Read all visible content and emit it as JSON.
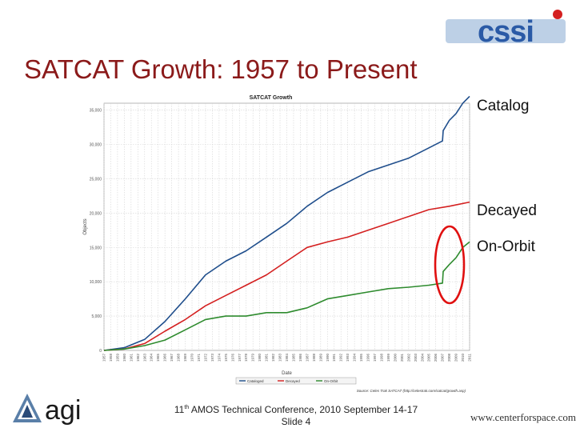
{
  "slide": {
    "title": "SATCAT Growth: 1957 to Present",
    "footer_line1_pre": "11",
    "footer_line1_sup": "th",
    "footer_line1_post": " AMOS Technical Conference, 2010 September 14-17",
    "footer_line2": "Slide 4",
    "website": "www.centerforspace.com",
    "logo_left": "agi",
    "logo_right": "cssi"
  },
  "callouts": {
    "catalog": "Catalog",
    "decayed": "Decayed",
    "on_orbit": "On-Orbit"
  },
  "colors": {
    "title": "#8b1a1a",
    "catalog": "#1f4e8c",
    "decayed": "#d42020",
    "on_orbit": "#2e8b2e",
    "highlight": "#e01010"
  },
  "chart_data": {
    "type": "line",
    "title": "SATCAT Growth",
    "xlabel": "Date",
    "ylabel": "Objects",
    "xlim": [
      1957,
      2011
    ],
    "ylim": [
      0,
      36000
    ],
    "yticks": [
      "0",
      "5,000",
      "10,000",
      "15,000",
      "20,000",
      "25,000",
      "30,000",
      "35,000"
    ],
    "xticks": [
      "1957",
      "1958",
      "1959",
      "1960",
      "1961",
      "1962",
      "1963",
      "1964",
      "1965",
      "1966",
      "1967",
      "1968",
      "1969",
      "1970",
      "1971",
      "1972",
      "1973",
      "1974",
      "1975",
      "1976",
      "1977",
      "1978",
      "1979",
      "1980",
      "1981",
      "1982",
      "1983",
      "1984",
      "1985",
      "1986",
      "1987",
      "1988",
      "1989",
      "1990",
      "1991",
      "1992",
      "1993",
      "1994",
      "1995",
      "1996",
      "1997",
      "1998",
      "1999",
      "2000",
      "2001",
      "2002",
      "2003",
      "2004",
      "2005",
      "2006",
      "2007",
      "2008",
      "2009",
      "2010",
      "2011"
    ],
    "grid": true,
    "legend_placement": "bottom",
    "source": "Source: Celes Trak SATCAT (http://celestrak.com/satcat/growth.asp)",
    "series": [
      {
        "name": "Cataloged",
        "x": [
          1957,
          1960,
          1963,
          1966,
          1969,
          1972,
          1975,
          1978,
          1981,
          1984,
          1987,
          1990,
          1993,
          1996,
          1999,
          2002,
          2005,
          2007,
          2007.1,
          2008,
          2009,
          2010,
          2011
        ],
        "y": [
          0,
          400,
          1600,
          4200,
          7500,
          11000,
          13000,
          14500,
          16500,
          18500,
          21000,
          23000,
          24500,
          26000,
          27000,
          28000,
          29500,
          30500,
          32000,
          33500,
          34500,
          36000,
          37000
        ]
      },
      {
        "name": "Decayed",
        "x": [
          1957,
          1960,
          1963,
          1966,
          1969,
          1972,
          1975,
          1978,
          1981,
          1984,
          1987,
          1990,
          1993,
          1996,
          1999,
          2002,
          2005,
          2008,
          2011
        ],
        "y": [
          0,
          200,
          1000,
          2800,
          4500,
          6500,
          8000,
          9500,
          11000,
          13000,
          15000,
          15800,
          16500,
          17500,
          18500,
          19500,
          20500,
          21000,
          21600
        ]
      },
      {
        "name": "On-Orbit",
        "x": [
          1957,
          1960,
          1963,
          1966,
          1969,
          1972,
          1975,
          1978,
          1981,
          1984,
          1987,
          1990,
          1993,
          1996,
          1999,
          2002,
          2005,
          2007,
          2007.1,
          2008,
          2009,
          2010,
          2011
        ],
        "y": [
          0,
          200,
          700,
          1500,
          3000,
          4500,
          5000,
          5000,
          5500,
          5500,
          6200,
          7500,
          8000,
          8500,
          9000,
          9200,
          9500,
          9800,
          11500,
          12500,
          13500,
          15000,
          15800
        ]
      }
    ]
  }
}
